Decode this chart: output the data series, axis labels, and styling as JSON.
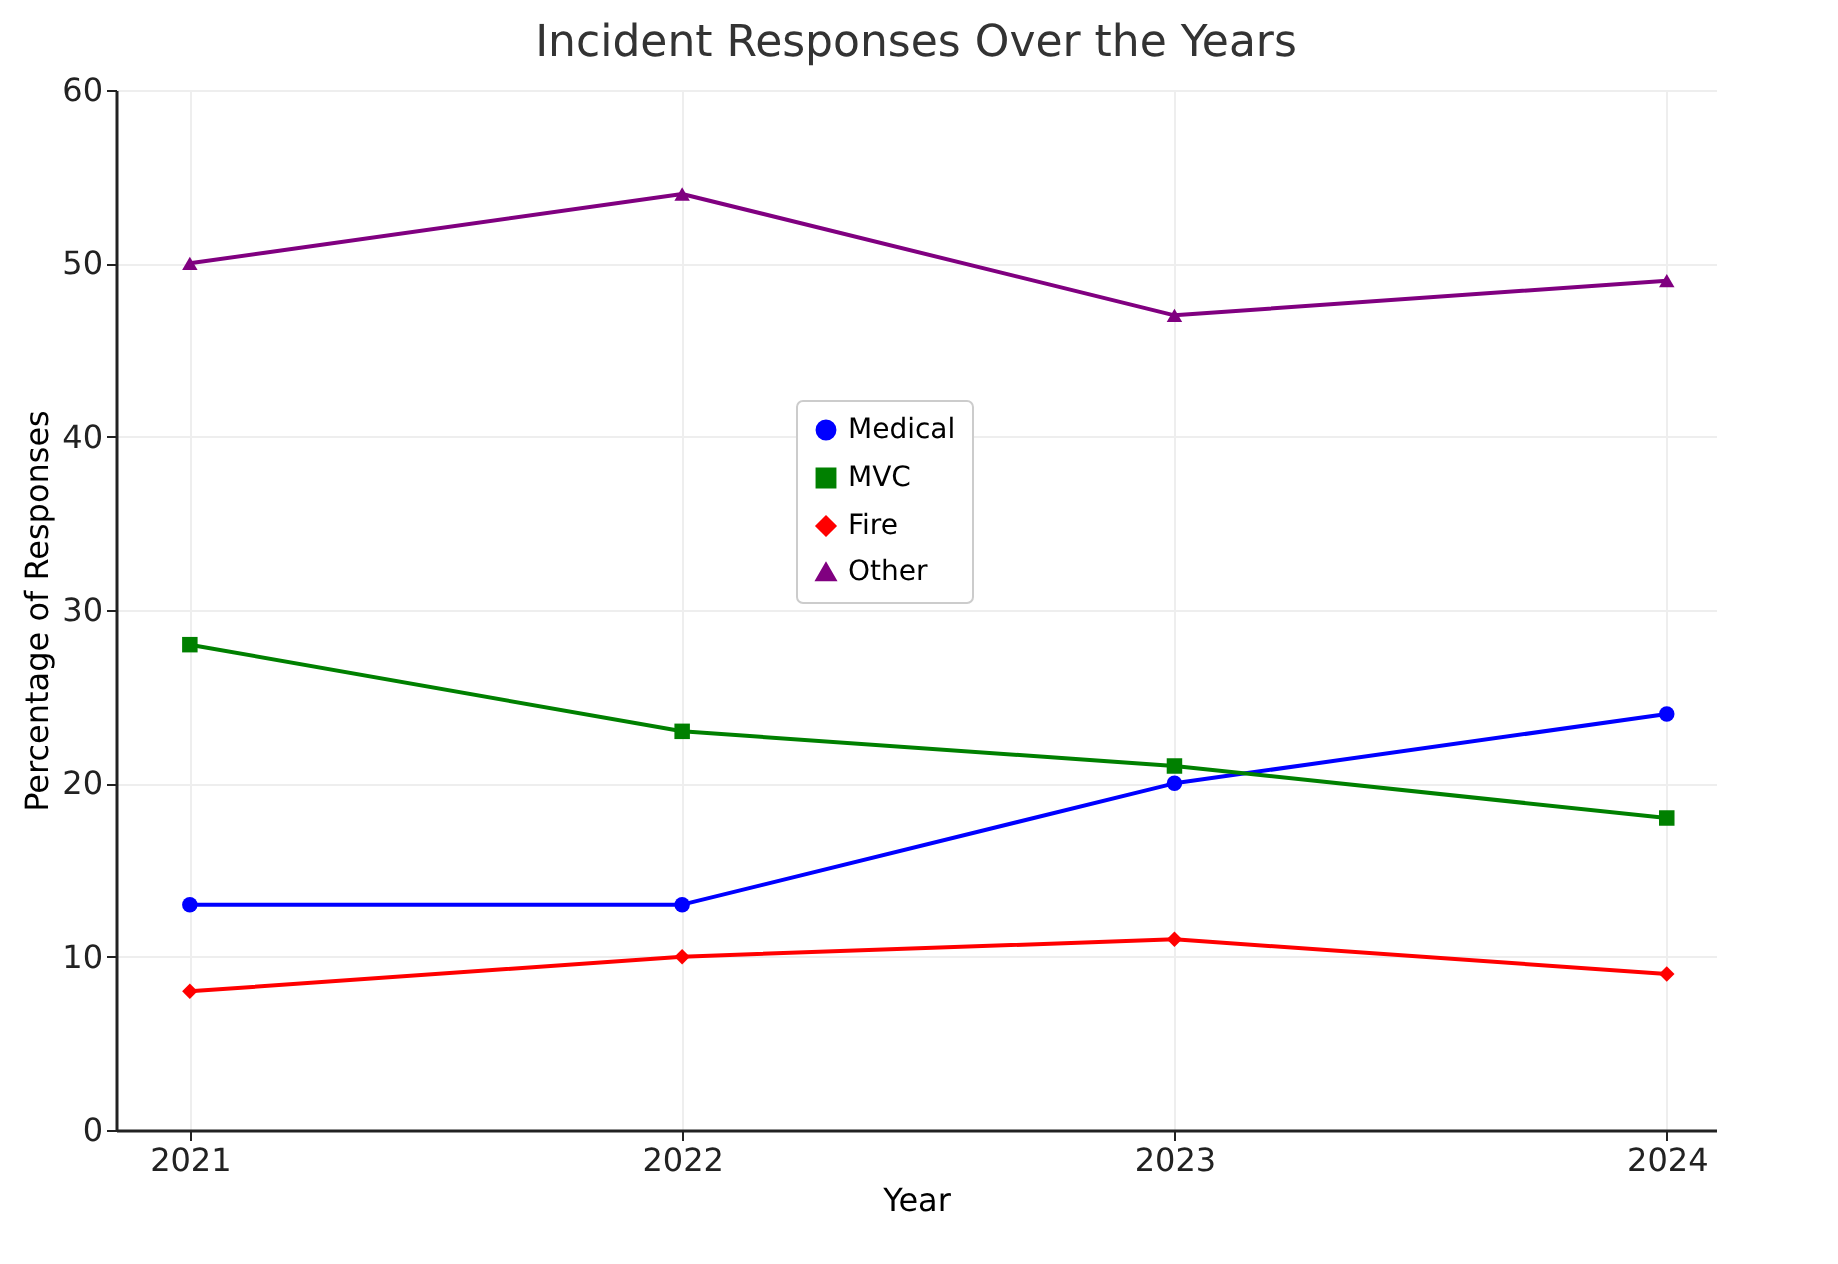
{
  "chart_data": {
    "type": "line",
    "title": "Incident Responses Over the Years",
    "xlabel": "Year",
    "ylabel": "Percentage of Responses",
    "categories": [
      "2021",
      "2022",
      "2023",
      "2024"
    ],
    "series": [
      {
        "name": "Medical",
        "color": "#0000ff",
        "marker": "circle",
        "values": [
          13,
          13,
          20,
          24
        ]
      },
      {
        "name": "MVC",
        "color": "#008000",
        "marker": "square",
        "values": [
          28,
          23,
          21,
          18
        ]
      },
      {
        "name": "Fire",
        "color": "#ff0000",
        "marker": "diamond",
        "values": [
          8,
          10,
          11,
          9
        ]
      },
      {
        "name": "Other",
        "color": "#800080",
        "marker": "triangle",
        "values": [
          50,
          54,
          47,
          49
        ]
      }
    ],
    "ylim": [
      0,
      60
    ],
    "yticks": [
      0,
      10,
      20,
      30,
      40,
      50,
      60
    ],
    "grid": true,
    "legend": "center",
    "line_style": "solid"
  }
}
